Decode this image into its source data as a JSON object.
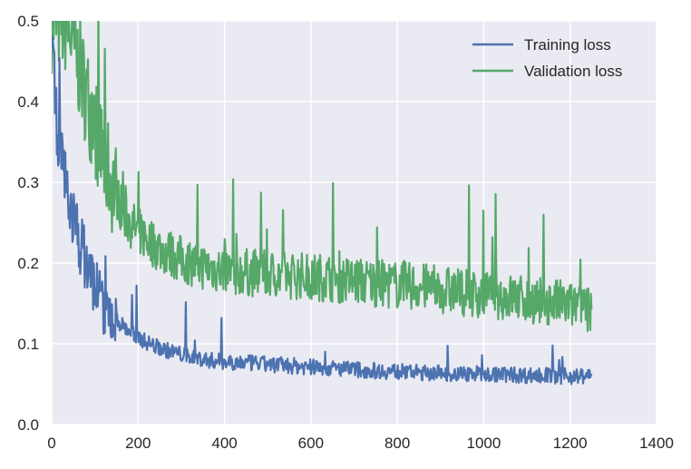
{
  "chart_data": {
    "type": "line",
    "title": "",
    "xlabel": "",
    "ylabel": "",
    "xlim": [
      0,
      1400
    ],
    "ylim": [
      0,
      0.5
    ],
    "x_ticks": [
      {
        "value": 0,
        "label": "0"
      },
      {
        "value": 200,
        "label": "200"
      },
      {
        "value": 400,
        "label": "400"
      },
      {
        "value": 600,
        "label": "600"
      },
      {
        "value": 800,
        "label": "800"
      },
      {
        "value": 1000,
        "label": "1000"
      },
      {
        "value": 1200,
        "label": "1200"
      },
      {
        "value": 1400,
        "label": "1400"
      }
    ],
    "y_ticks": [
      {
        "value": 0.0,
        "label": "0.0"
      },
      {
        "value": 0.1,
        "label": "0.1"
      },
      {
        "value": 0.2,
        "label": "0.2"
      },
      {
        "value": 0.3,
        "label": "0.3"
      },
      {
        "value": 0.4,
        "label": "0.4"
      },
      {
        "value": 0.5,
        "label": "0.5"
      }
    ],
    "grid": true,
    "background": "#eaeaf2",
    "legend_position": "top-right",
    "series": [
      {
        "name": "Training loss",
        "color": "#4c72b0",
        "x": [
          0,
          5,
          10,
          20,
          30,
          40,
          50,
          60,
          70,
          80,
          90,
          100,
          110,
          120,
          130,
          140,
          150,
          160,
          170,
          180,
          190,
          200,
          220,
          240,
          260,
          280,
          300,
          320,
          340,
          360,
          380,
          400,
          430,
          460,
          490,
          520,
          550,
          580,
          610,
          640,
          670,
          700,
          740,
          780,
          820,
          860,
          900,
          940,
          980,
          1020,
          1060,
          1100,
          1140,
          1180,
          1220,
          1250
        ],
        "y": [
          0.5,
          0.43,
          0.38,
          0.34,
          0.31,
          0.28,
          0.255,
          0.235,
          0.22,
          0.2,
          0.185,
          0.175,
          0.16,
          0.15,
          0.14,
          0.135,
          0.13,
          0.125,
          0.12,
          0.115,
          0.112,
          0.108,
          0.102,
          0.097,
          0.093,
          0.09,
          0.087,
          0.084,
          0.082,
          0.08,
          0.079,
          0.078,
          0.077,
          0.076,
          0.075,
          0.074,
          0.073,
          0.072,
          0.071,
          0.07,
          0.069,
          0.068,
          0.067,
          0.066,
          0.065,
          0.064,
          0.064,
          0.063,
          0.063,
          0.062,
          0.062,
          0.061,
          0.061,
          0.06,
          0.06,
          0.06
        ]
      },
      {
        "name": "Validation loss",
        "color": "#55a868",
        "x": [
          0,
          10,
          20,
          30,
          40,
          50,
          60,
          70,
          80,
          90,
          100,
          110,
          120,
          130,
          140,
          150,
          160,
          170,
          180,
          200,
          220,
          240,
          260,
          280,
          300,
          320,
          340,
          360,
          380,
          400,
          430,
          460,
          490,
          520,
          550,
          580,
          610,
          640,
          670,
          700,
          740,
          780,
          820,
          860,
          900,
          940,
          980,
          1020,
          1060,
          1100,
          1140,
          1180,
          1220,
          1250
        ],
        "y": [
          0.5,
          0.5,
          0.5,
          0.5,
          0.49,
          0.47,
          0.45,
          0.43,
          0.41,
          0.39,
          0.37,
          0.35,
          0.33,
          0.315,
          0.3,
          0.285,
          0.27,
          0.26,
          0.25,
          0.24,
          0.23,
          0.222,
          0.215,
          0.21,
          0.205,
          0.2,
          0.198,
          0.195,
          0.193,
          0.19,
          0.19,
          0.188,
          0.187,
          0.186,
          0.185,
          0.184,
          0.183,
          0.182,
          0.18,
          0.178,
          0.176,
          0.174,
          0.172,
          0.17,
          0.167,
          0.165,
          0.162,
          0.16,
          0.158,
          0.155,
          0.152,
          0.15,
          0.145,
          0.14
        ]
      }
    ]
  }
}
